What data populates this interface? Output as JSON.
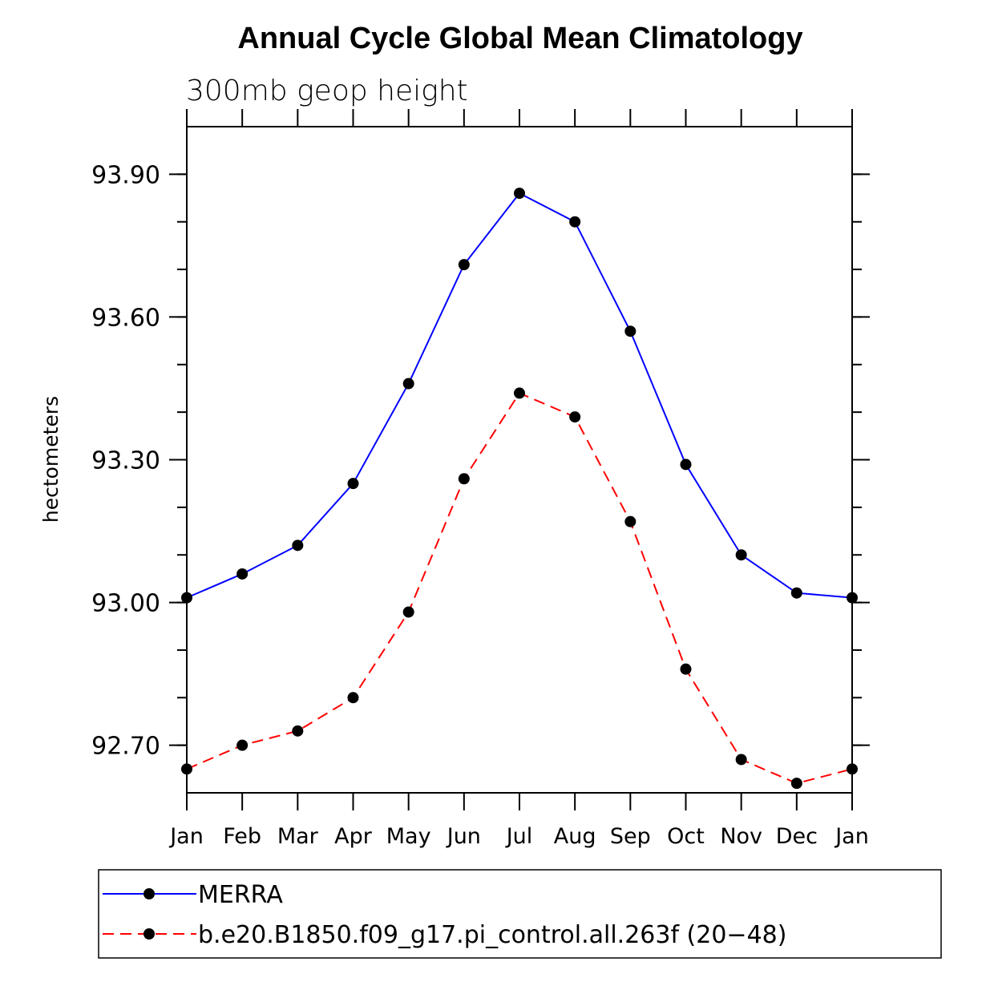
{
  "chart_data": {
    "type": "line",
    "title": "Annual Cycle Global Mean Climatology",
    "subtitle": "300mb geop height",
    "xlabel": "",
    "ylabel": "hectometers",
    "categories": [
      "Jan",
      "Feb",
      "Mar",
      "Apr",
      "May",
      "Jun",
      "Jul",
      "Aug",
      "Sep",
      "Oct",
      "Nov",
      "Dec",
      "Jan"
    ],
    "ylim": [
      92.6,
      94.0
    ],
    "yticks_major": [
      92.7,
      93.0,
      93.3,
      93.6,
      93.9
    ],
    "yticks_major_labels": [
      "92.70",
      "93.00",
      "93.30",
      "93.60",
      "93.90"
    ],
    "yticks_minor_step": 0.1,
    "legend_position": "bottom",
    "series": [
      {
        "name": "MERRA",
        "color": "#0000ff",
        "dash": "solid",
        "values": [
          93.01,
          93.06,
          93.12,
          93.25,
          93.46,
          93.71,
          93.86,
          93.8,
          93.57,
          93.29,
          93.1,
          93.02,
          93.01
        ]
      },
      {
        "name": "b.e20.B1850.f09_g17.pi_control.all.263f (20−48)",
        "color": "#ff0000",
        "dash": "dashed",
        "values": [
          92.65,
          92.7,
          92.73,
          92.8,
          92.98,
          93.26,
          93.44,
          93.39,
          93.17,
          92.86,
          92.67,
          92.62,
          92.65
        ]
      }
    ]
  }
}
